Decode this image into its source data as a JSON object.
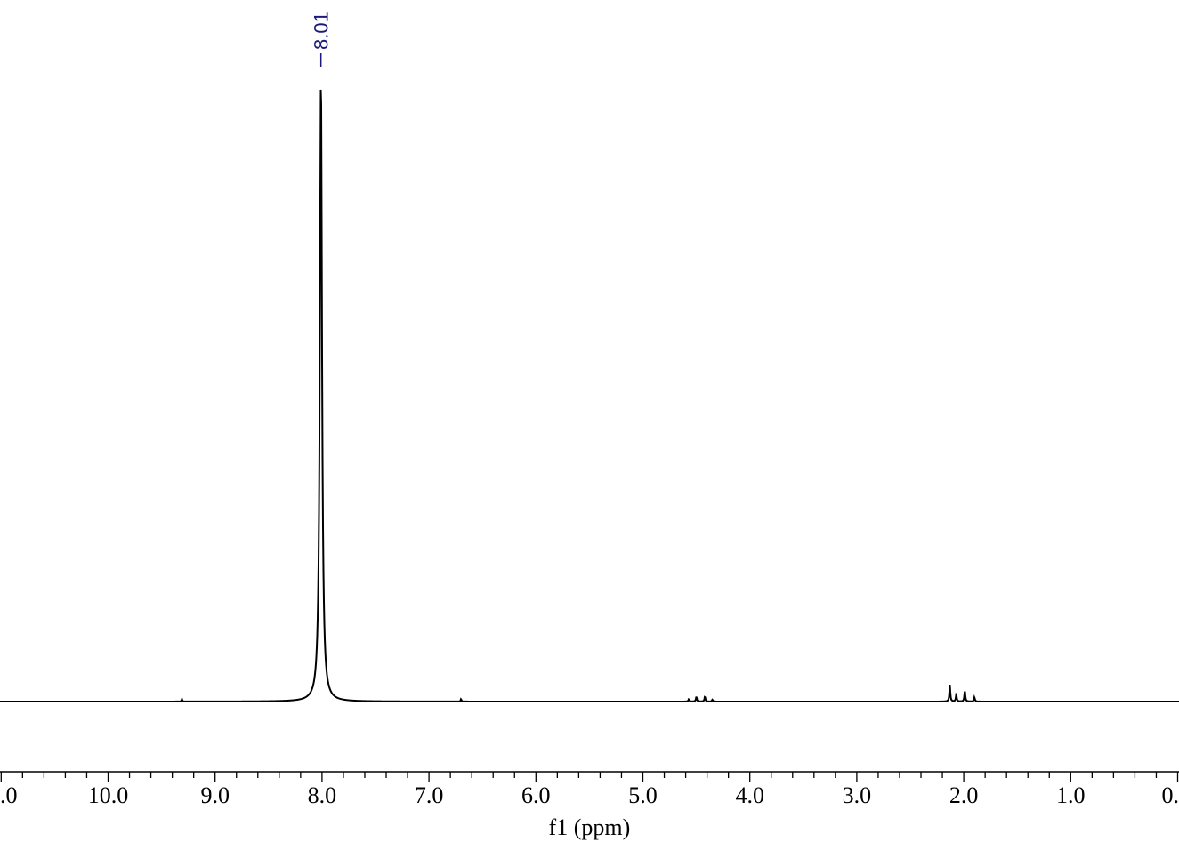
{
  "chart_data": {
    "type": "line",
    "title": "",
    "xlabel": "f1 (ppm)",
    "ylabel": "",
    "x_reversed": true,
    "xlim": [
      11.0,
      0.0
    ],
    "ylim": [
      0,
      1.0
    ],
    "major_ticks": [
      11.0,
      10.0,
      9.0,
      8.0,
      7.0,
      6.0,
      5.0,
      4.0,
      3.0,
      2.0,
      1.0,
      0.0
    ],
    "tick_labels": [
      ".0",
      "10.0",
      "9.0",
      "8.0",
      "7.0",
      "6.0",
      "5.0",
      "4.0",
      "3.0",
      "2.0",
      "1.0",
      "0."
    ],
    "grid": false,
    "line_color": "#000000",
    "peak_label_color": "#1a1a7a",
    "peaks": [
      {
        "ppm": 9.31,
        "height": 0.004,
        "width": 0.004
      },
      {
        "ppm": 8.01,
        "height": 1.0,
        "width": 0.012
      },
      {
        "ppm": 6.7,
        "height": 0.004,
        "width": 0.004
      },
      {
        "ppm": 4.57,
        "height": 0.004,
        "width": 0.005
      },
      {
        "ppm": 4.5,
        "height": 0.008,
        "width": 0.005
      },
      {
        "ppm": 4.42,
        "height": 0.008,
        "width": 0.005
      },
      {
        "ppm": 4.35,
        "height": 0.003,
        "width": 0.005
      },
      {
        "ppm": 2.13,
        "height": 0.027,
        "width": 0.005
      },
      {
        "ppm": 2.07,
        "height": 0.011,
        "width": 0.005
      },
      {
        "ppm": 1.99,
        "height": 0.018,
        "width": 0.005
      },
      {
        "ppm": 1.9,
        "height": 0.007,
        "width": 0.005
      }
    ],
    "annotations": [
      {
        "ppm": 8.01,
        "label": "8.01"
      }
    ]
  }
}
